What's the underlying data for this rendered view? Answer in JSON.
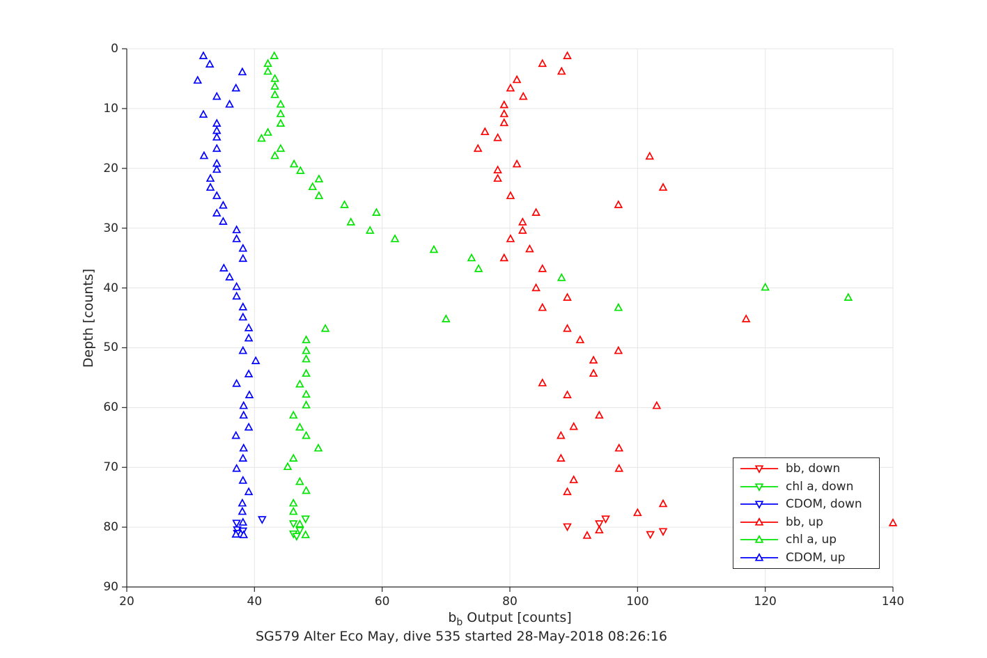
{
  "figure": {
    "caption": "SG579 Alter Eco May, dive 535 started 28-May-2018 08:26:16"
  },
  "chart_data": {
    "type": "scatter",
    "title": "",
    "xlabel": {
      "base": "b",
      "sub": "b",
      "rest": " Output [counts]"
    },
    "ylabel": "Depth [counts]",
    "xlim": [
      20,
      140
    ],
    "ylim": [
      0,
      90
    ],
    "y_axis_reversed": true,
    "grid": true,
    "xticks": [
      20,
      40,
      60,
      80,
      100,
      120,
      140
    ],
    "yticks": [
      0,
      10,
      20,
      30,
      40,
      50,
      60,
      70,
      80,
      90
    ],
    "legend_position": "inside lower right",
    "axis_color": "#262626",
    "grid_color": "#e6e6e6",
    "series": [
      {
        "name": "bb, down",
        "color": "#ff0000",
        "marker": "triangle-down",
        "points": [
          [
            89.0,
            79.9
          ],
          [
            94.0,
            79.4
          ],
          [
            95.0,
            78.6
          ],
          [
            102.0,
            81.2
          ],
          [
            104.0,
            80.7
          ]
        ]
      },
      {
        "name": "chl a, down",
        "color": "#00e400",
        "marker": "triangle-down",
        "points": [
          [
            48.0,
            78.6
          ],
          [
            46.1,
            79.4
          ],
          [
            47.1,
            80.5
          ],
          [
            46.1,
            81.1
          ],
          [
            46.6,
            81.5
          ]
        ]
      },
      {
        "name": "CDOM, down",
        "color": "#0000ff",
        "marker": "triangle-down",
        "points": [
          [
            41.2,
            78.7
          ],
          [
            37.2,
            79.3
          ],
          [
            37.3,
            80.4
          ],
          [
            38.2,
            80.6
          ],
          [
            37.3,
            81.0
          ]
        ]
      },
      {
        "name": "bb, up",
        "color": "#ff0000",
        "marker": "triangle-up",
        "points": [
          [
            89.0,
            1.2
          ],
          [
            85.1,
            2.5
          ],
          [
            88.1,
            3.8
          ],
          [
            81.1,
            5.2
          ],
          [
            80.1,
            6.6
          ],
          [
            82.1,
            8.0
          ],
          [
            79.1,
            9.4
          ],
          [
            79.1,
            10.9
          ],
          [
            79.1,
            12.4
          ],
          [
            76.1,
            13.9
          ],
          [
            78.1,
            14.9
          ],
          [
            75.0,
            16.7
          ],
          [
            101.9,
            18.0
          ],
          [
            81.1,
            19.3
          ],
          [
            78.1,
            20.3
          ],
          [
            78.1,
            21.7
          ],
          [
            104.0,
            23.2
          ],
          [
            80.1,
            24.6
          ],
          [
            97.0,
            26.1
          ],
          [
            84.1,
            27.4
          ],
          [
            82.0,
            29.0
          ],
          [
            82.0,
            30.4
          ],
          [
            80.1,
            31.8
          ],
          [
            83.1,
            33.5
          ],
          [
            79.1,
            35.0
          ],
          [
            85.1,
            36.8
          ],
          [
            84.1,
            40.0
          ],
          [
            89.0,
            41.6
          ],
          [
            85.1,
            43.3
          ],
          [
            117.0,
            45.2
          ],
          [
            89.0,
            46.8
          ],
          [
            91.0,
            48.7
          ],
          [
            97.0,
            50.5
          ],
          [
            93.1,
            52.1
          ],
          [
            93.1,
            54.3
          ],
          [
            85.1,
            55.9
          ],
          [
            89.0,
            57.9
          ],
          [
            103.0,
            59.7
          ],
          [
            94.0,
            61.3
          ],
          [
            90.0,
            63.2
          ],
          [
            88.0,
            64.7
          ],
          [
            97.1,
            66.8
          ],
          [
            88.0,
            68.5
          ],
          [
            97.1,
            70.2
          ],
          [
            90.0,
            72.1
          ],
          [
            89.0,
            74.1
          ],
          [
            104.0,
            76.1
          ],
          [
            100.0,
            77.6
          ],
          [
            94.0,
            80.5
          ],
          [
            92.1,
            81.4
          ],
          [
            140.0,
            79.3
          ]
        ]
      },
      {
        "name": "chl a, up",
        "color": "#00e400",
        "marker": "triangle-up",
        "points": [
          [
            43.1,
            1.2
          ],
          [
            42.1,
            2.5
          ],
          [
            42.1,
            3.8
          ],
          [
            43.2,
            5.0
          ],
          [
            43.2,
            6.3
          ],
          [
            43.2,
            7.7
          ],
          [
            44.1,
            9.3
          ],
          [
            44.1,
            10.9
          ],
          [
            44.1,
            12.5
          ],
          [
            42.1,
            14.0
          ],
          [
            41.1,
            15.0
          ],
          [
            44.1,
            16.7
          ],
          [
            43.2,
            17.9
          ],
          [
            46.2,
            19.3
          ],
          [
            47.2,
            20.4
          ],
          [
            50.1,
            21.8
          ],
          [
            49.1,
            23.1
          ],
          [
            50.1,
            24.6
          ],
          [
            54.1,
            26.1
          ],
          [
            59.1,
            27.4
          ],
          [
            55.1,
            29.0
          ],
          [
            58.1,
            30.4
          ],
          [
            62.0,
            31.8
          ],
          [
            68.1,
            33.6
          ],
          [
            74.0,
            35.0
          ],
          [
            75.1,
            36.8
          ],
          [
            88.1,
            38.3
          ],
          [
            120.0,
            39.9
          ],
          [
            133.0,
            41.6
          ],
          [
            97.0,
            43.3
          ],
          [
            70.0,
            45.2
          ],
          [
            51.1,
            46.8
          ],
          [
            48.1,
            48.7
          ],
          [
            48.1,
            50.5
          ],
          [
            48.1,
            51.9
          ],
          [
            48.1,
            54.3
          ],
          [
            47.1,
            56.1
          ],
          [
            48.1,
            57.8
          ],
          [
            48.1,
            59.6
          ],
          [
            46.1,
            61.3
          ],
          [
            47.1,
            63.3
          ],
          [
            48.1,
            64.7
          ],
          [
            50.0,
            66.8
          ],
          [
            46.1,
            68.5
          ],
          [
            45.2,
            69.9
          ],
          [
            47.1,
            72.4
          ],
          [
            48.1,
            73.9
          ],
          [
            46.1,
            76.0
          ],
          [
            46.1,
            77.4
          ],
          [
            47.1,
            79.5
          ],
          [
            48.0,
            81.3
          ]
        ]
      },
      {
        "name": "CDOM, up",
        "color": "#0000ff",
        "marker": "triangle-up",
        "points": [
          [
            32.0,
            1.2
          ],
          [
            33.0,
            2.6
          ],
          [
            38.1,
            3.9
          ],
          [
            31.1,
            5.3
          ],
          [
            37.1,
            6.6
          ],
          [
            34.1,
            8.0
          ],
          [
            36.1,
            9.3
          ],
          [
            32.0,
            11.0
          ],
          [
            34.1,
            12.5
          ],
          [
            34.1,
            13.7
          ],
          [
            34.1,
            14.8
          ],
          [
            34.1,
            16.7
          ],
          [
            32.1,
            17.9
          ],
          [
            34.1,
            19.2
          ],
          [
            34.1,
            20.2
          ],
          [
            33.1,
            21.7
          ],
          [
            33.1,
            23.2
          ],
          [
            34.1,
            24.6
          ],
          [
            35.1,
            26.2
          ],
          [
            34.1,
            27.5
          ],
          [
            35.1,
            28.9
          ],
          [
            37.2,
            30.3
          ],
          [
            37.2,
            31.8
          ],
          [
            38.2,
            33.4
          ],
          [
            38.2,
            35.1
          ],
          [
            35.2,
            36.7
          ],
          [
            36.1,
            38.2
          ],
          [
            37.2,
            39.8
          ],
          [
            37.2,
            41.4
          ],
          [
            38.2,
            43.2
          ],
          [
            38.2,
            44.9
          ],
          [
            39.1,
            46.7
          ],
          [
            39.1,
            48.4
          ],
          [
            38.2,
            50.5
          ],
          [
            40.2,
            52.2
          ],
          [
            39.1,
            54.4
          ],
          [
            37.2,
            56.0
          ],
          [
            39.2,
            57.9
          ],
          [
            38.3,
            59.7
          ],
          [
            38.3,
            61.3
          ],
          [
            39.1,
            63.3
          ],
          [
            37.1,
            64.7
          ],
          [
            38.3,
            66.8
          ],
          [
            38.2,
            68.5
          ],
          [
            37.2,
            70.2
          ],
          [
            38.2,
            72.2
          ],
          [
            39.1,
            74.1
          ],
          [
            38.1,
            76.0
          ],
          [
            38.1,
            77.4
          ],
          [
            38.2,
            79.2
          ],
          [
            37.1,
            81.2
          ],
          [
            38.3,
            81.3
          ]
        ]
      }
    ]
  }
}
